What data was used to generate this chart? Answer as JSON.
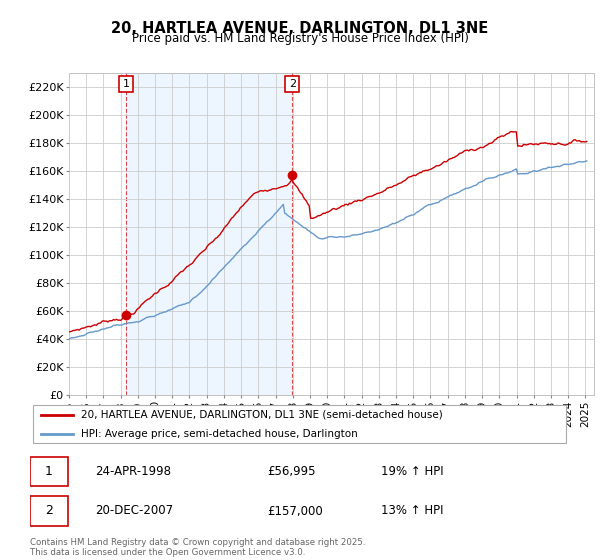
{
  "title": "20, HARTLEA AVENUE, DARLINGTON, DL1 3NE",
  "subtitle": "Price paid vs. HM Land Registry's House Price Index (HPI)",
  "ylim": [
    0,
    230000
  ],
  "yticks": [
    0,
    20000,
    40000,
    60000,
    80000,
    100000,
    120000,
    140000,
    160000,
    180000,
    200000,
    220000
  ],
  "ytick_labels": [
    "£0",
    "£20K",
    "£40K",
    "£60K",
    "£80K",
    "£100K",
    "£120K",
    "£140K",
    "£160K",
    "£180K",
    "£200K",
    "£220K"
  ],
  "xlim_start": 1995.0,
  "xlim_end": 2025.5,
  "legend_line1": "20, HARTLEA AVENUE, DARLINGTON, DL1 3NE (semi-detached house)",
  "legend_line2": "HPI: Average price, semi-detached house, Darlington",
  "transaction1_label": "1",
  "transaction1_date": "24-APR-1998",
  "transaction1_price": "£56,995",
  "transaction1_hpi": "19% ↑ HPI",
  "transaction2_label": "2",
  "transaction2_date": "20-DEC-2007",
  "transaction2_price": "£157,000",
  "transaction2_hpi": "13% ↑ HPI",
  "footer": "Contains HM Land Registry data © Crown copyright and database right 2025.\nThis data is licensed under the Open Government Licence v3.0.",
  "line_color_red": "#cc0000",
  "line_color_blue": "#6699cc",
  "fill_color_blue": "#ddeeff",
  "background_color": "#ffffff",
  "grid_color": "#cccccc",
  "vline_color": "#cc0000",
  "marker1_x": 1998.31,
  "marker1_y": 56995,
  "marker2_x": 2007.97,
  "marker2_y": 157000
}
